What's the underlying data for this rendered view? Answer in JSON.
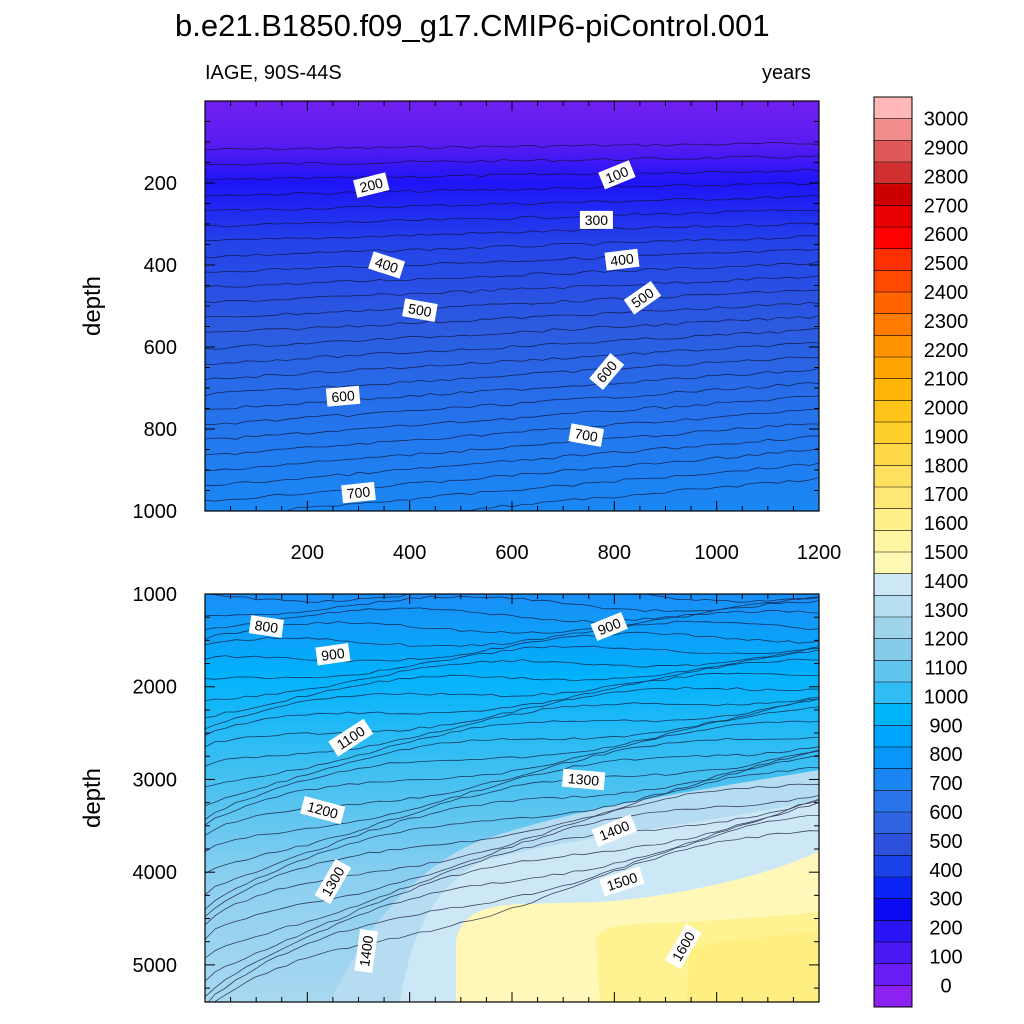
{
  "figure": {
    "title": "b.e21.B1850.f09_g17.CMIP6-piControl.001",
    "subtitle_left": "IAGE, 90S-44S",
    "subtitle_right": "years"
  },
  "chart_data": [
    {
      "type": "heatmap",
      "panel": "upper",
      "x": {
        "label": "",
        "range": [
          0,
          1200
        ],
        "ticks": [
          200,
          400,
          600,
          800,
          1000,
          1200
        ]
      },
      "y": {
        "label": "depth",
        "range": [
          0,
          1000
        ],
        "reversed": true,
        "ticks": [
          200,
          400,
          600,
          800,
          1000
        ]
      },
      "contour_labels": [
        {
          "text": "100",
          "x": 805,
          "y": 180,
          "angle": -22
        },
        {
          "text": "200",
          "x": 325,
          "y": 205,
          "angle": -14
        },
        {
          "text": "300",
          "x": 765,
          "y": 290,
          "angle": 0
        },
        {
          "text": "400",
          "x": 355,
          "y": 400,
          "angle": 18
        },
        {
          "text": "400",
          "x": 815,
          "y": 387,
          "angle": -7
        },
        {
          "text": "500",
          "x": 420,
          "y": 510,
          "angle": 10
        },
        {
          "text": "500",
          "x": 855,
          "y": 480,
          "angle": -35
        },
        {
          "text": "600",
          "x": 270,
          "y": 720,
          "angle": -5
        },
        {
          "text": "600",
          "x": 785,
          "y": 660,
          "angle": -50
        },
        {
          "text": "700",
          "x": 745,
          "y": 815,
          "angle": 10
        },
        {
          "text": "700",
          "x": 300,
          "y": 955,
          "angle": -6
        }
      ]
    },
    {
      "type": "heatmap",
      "panel": "lower",
      "x": {
        "label": "",
        "range": [
          0,
          1200
        ],
        "ticks": [
          200,
          400,
          600,
          800,
          1000,
          1200
        ]
      },
      "y": {
        "label": "depth",
        "range": [
          1000,
          5400
        ],
        "reversed": true,
        "ticks": [
          1000,
          2000,
          3000,
          4000,
          5000
        ]
      },
      "contour_labels": [
        {
          "text": "800",
          "x": 120,
          "y": 1350,
          "angle": 8
        },
        {
          "text": "900",
          "x": 250,
          "y": 1650,
          "angle": -8
        },
        {
          "text": "900",
          "x": 790,
          "y": 1350,
          "angle": -22
        },
        {
          "text": "1100",
          "x": 285,
          "y": 2550,
          "angle": -33
        },
        {
          "text": "1200",
          "x": 230,
          "y": 3330,
          "angle": 15
        },
        {
          "text": "1300",
          "x": 740,
          "y": 3000,
          "angle": 5
        },
        {
          "text": "1300",
          "x": 250,
          "y": 4100,
          "angle": -60
        },
        {
          "text": "1400",
          "x": 800,
          "y": 3550,
          "angle": -22
        },
        {
          "text": "1400",
          "x": 315,
          "y": 4850,
          "angle": -82
        },
        {
          "text": "1500",
          "x": 815,
          "y": 4100,
          "angle": -18
        },
        {
          "text": "1600",
          "x": 935,
          "y": 4800,
          "angle": -60
        }
      ]
    }
  ],
  "colorbar": {
    "labels": [
      "0",
      "100",
      "200",
      "300",
      "400",
      "500",
      "600",
      "700",
      "800",
      "900",
      "1000",
      "1100",
      "1200",
      "1300",
      "1400",
      "1500",
      "1600",
      "1700",
      "1800",
      "1900",
      "2000",
      "2100",
      "2200",
      "2300",
      "2400",
      "2500",
      "2600",
      "2700",
      "2800",
      "2900",
      "3000"
    ],
    "colors": [
      "#8c21f0",
      "#6a1cf5",
      "#4a1af5",
      "#2a14f5",
      "#0a0af5",
      "#0a24f5",
      "#1a40e8",
      "#2c50dc",
      "#2f64e2",
      "#2a74ea",
      "#1a86f4",
      "#0a96f8",
      "#00a6fc",
      "#00b4fc",
      "#30bcf4",
      "#60c4ee",
      "#84ccea",
      "#9ed4ec",
      "#b6e0f2",
      "#cce8f6",
      "#fff8b4",
      "#fff6a4",
      "#fff08a",
      "#ffe878",
      "#ffe060",
      "#ffd84a",
      "#ffd02c",
      "#ffc41a",
      "#ffb40a",
      "#ffa400",
      "#ff9400",
      "#ff7c00",
      "#ff6400",
      "#ff4800",
      "#ff3000",
      "#ff0000",
      "#e80000",
      "#cc0000",
      "#d03030",
      "#e05858",
      "#f08c8c",
      "#ffb8b8"
    ]
  }
}
